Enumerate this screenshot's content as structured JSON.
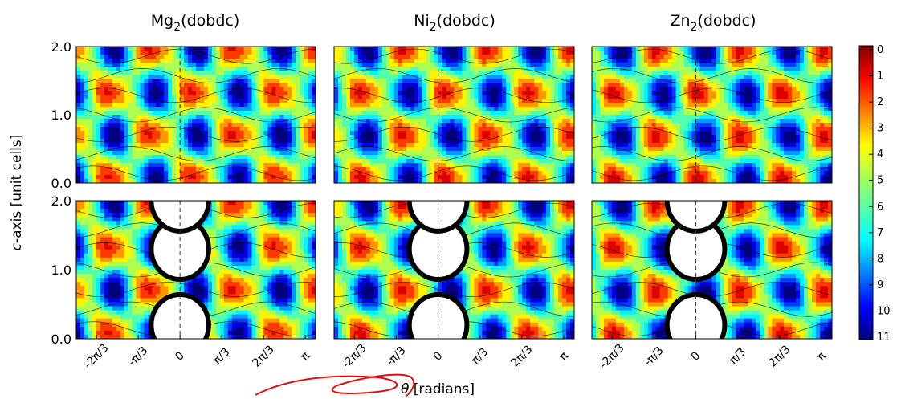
{
  "figure": {
    "columns": [
      {
        "title_base": "Mg",
        "title_sub": "2",
        "title_rest": "(dobdc)"
      },
      {
        "title_base": "Ni",
        "title_sub": "2",
        "title_rest": "(dobdc)"
      },
      {
        "title_base": "Zn",
        "title_sub": "2",
        "title_rest": "(dobdc)"
      }
    ],
    "ylabel_italic": "c",
    "ylabel_rest": "-axis [unit cells]",
    "xlabel_symbol": "θ",
    "xlabel_rest": " [radians]"
  },
  "chart_data": {
    "type": "heatmap",
    "layout": "2 rows × 3 columns of filled contour maps with black contour lines",
    "x_axis": {
      "label": "θ [radians]",
      "ticks": [
        "-2π/3",
        "-π/3",
        "0",
        "π/3",
        "2π/3",
        "π"
      ],
      "tick_values": [
        -2.094,
        -1.047,
        0,
        1.047,
        2.094,
        3.1416
      ],
      "range": [
        -2.6,
        3.4
      ]
    },
    "y_axis": {
      "label": "c-axis [unit cells]",
      "ticks": [
        "0.0",
        "1.0",
        "2.0"
      ],
      "tick_values": [
        0,
        1,
        2
      ],
      "range": [
        0,
        2
      ]
    },
    "colorbar": {
      "ticks": [
        "0",
        "1",
        "2",
        "3",
        "4",
        "5",
        "6",
        "7",
        "8",
        "9",
        "10",
        "11"
      ],
      "range": [
        0,
        11
      ],
      "colormap": "jet, reversed (0 = dark red at top, 11 = dark blue at bottom)"
    },
    "panels": [
      {
        "row": 1,
        "column": "Mg2(dobdc)",
        "has_pore_exclusion": false
      },
      {
        "row": 1,
        "column": "Ni2(dobdc)",
        "has_pore_exclusion": false
      },
      {
        "row": 1,
        "column": "Zn2(dobdc)",
        "has_pore_exclusion": false
      },
      {
        "row": 2,
        "column": "Mg2(dobdc)",
        "has_pore_exclusion": true,
        "excluded_centers_c": [
          0.2,
          1.3,
          2.0
        ]
      },
      {
        "row": 2,
        "column": "Ni2(dobdc)",
        "has_pore_exclusion": true,
        "excluded_centers_c": [
          0.2,
          1.3,
          2.0
        ]
      },
      {
        "row": 2,
        "column": "Zn2(dobdc)",
        "has_pore_exclusion": true,
        "excluded_centers_c": [
          0.2,
          1.3,
          2.0
        ]
      }
    ],
    "dashed_line_at_x": 0,
    "annotation": "red hand-drawn scribble near the x-axis label"
  }
}
